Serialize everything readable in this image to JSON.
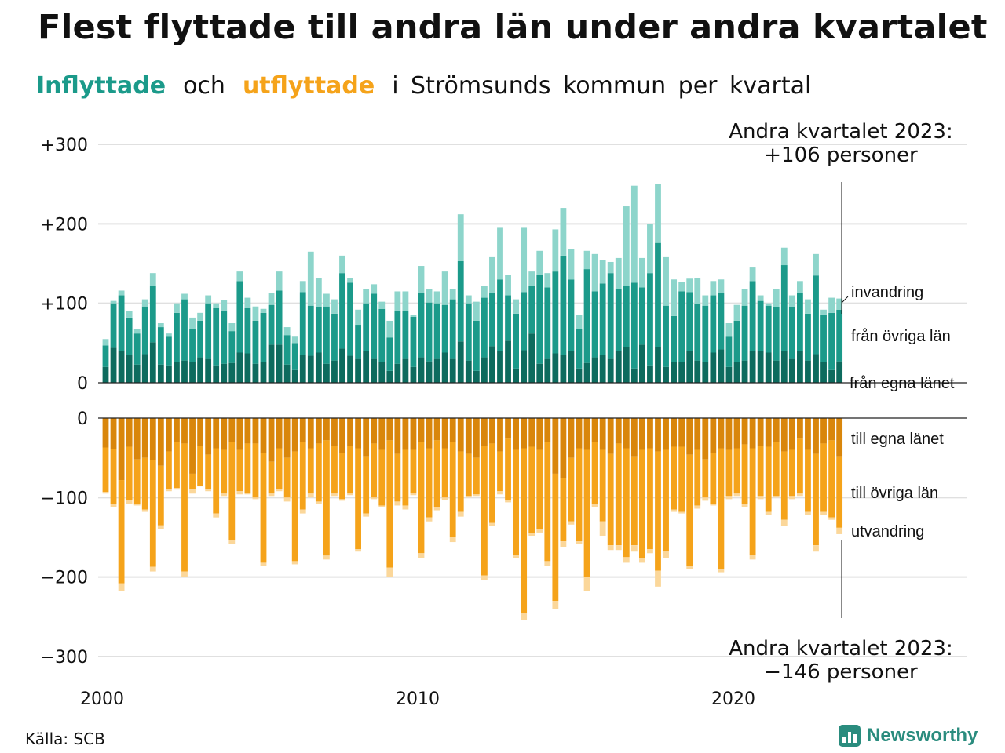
{
  "title": "Flest flyttade till andra län under andra kvartalet",
  "subtitle": {
    "in_label": "Inflyttade",
    "and": "och",
    "out_label": "utflyttade",
    "rest": "i Strömsunds kommun per kvartal"
  },
  "source": "Källa: SCB",
  "brand": "Newsworthy",
  "colors": {
    "in_own": "#0d6b5e",
    "in_other": "#1b9a8a",
    "in_immigration": "#8dd5cb",
    "out_own": "#d9860b",
    "out_other": "#f5a31a",
    "out_emigration": "#fbd79a"
  },
  "chart_data": {
    "type": "bar",
    "stacked": true,
    "x_start_year": 2000,
    "periods_per_year": 4,
    "ylim": [
      -300,
      300
    ],
    "y_ticks_top": [
      "+300",
      "+200",
      "+100",
      "0"
    ],
    "y_ticks_bottom": [
      "0",
      "−100",
      "−200",
      "−300"
    ],
    "x_ticks": [
      "2000",
      "2010",
      "2020"
    ],
    "grid": true,
    "annotation_top_line1": "Andra kvartalet 2023:",
    "annotation_top_line2": "+106 personer",
    "annotation_bottom_line1": "Andra kvartalet 2023:",
    "annotation_bottom_line2": "−146 personer",
    "series_labels": {
      "in_immigration": "invandring",
      "in_other": "från övriga län",
      "in_own": "från egna länet",
      "out_own": "till egna länet",
      "out_other": "till övriga län",
      "out_emigration": "utvandring"
    },
    "in_totals": [
      55,
      103,
      116,
      90,
      68,
      105,
      138,
      75,
      62,
      100,
      112,
      82,
      88,
      110,
      100,
      104,
      75,
      140,
      107,
      96,
      93,
      113,
      140,
      70,
      58,
      128,
      165,
      132,
      112,
      105,
      160,
      132,
      92,
      118,
      124,
      102,
      78,
      115,
      115,
      85,
      147,
      118,
      115,
      140,
      118,
      212,
      110,
      102,
      122,
      158,
      195,
      136,
      105,
      195,
      140,
      166,
      138,
      193,
      220,
      168,
      85,
      166,
      162,
      154,
      152,
      157,
      222,
      248,
      157,
      200,
      250,
      158,
      130,
      127,
      131,
      132,
      110,
      128,
      130,
      75,
      98,
      118,
      145,
      110,
      100,
      118,
      170,
      110,
      128,
      105,
      162,
      92,
      107,
      106
    ],
    "in_own": [
      20,
      44,
      40,
      35,
      23,
      36,
      51,
      23,
      22,
      26,
      28,
      26,
      32,
      30,
      22,
      24,
      25,
      38,
      37,
      24,
      26,
      48,
      48,
      23,
      16,
      35,
      34,
      38,
      24,
      28,
      43,
      34,
      30,
      40,
      30,
      26,
      15,
      24,
      30,
      20,
      32,
      27,
      30,
      38,
      30,
      52,
      28,
      15,
      32,
      46,
      40,
      53,
      18,
      41,
      62,
      24,
      30,
      37,
      35,
      40,
      18,
      25,
      32,
      35,
      30,
      40,
      45,
      18,
      48,
      22,
      45,
      20,
      26,
      26,
      40,
      28,
      26,
      38,
      42,
      20,
      26,
      28,
      40,
      40,
      38,
      28,
      40,
      30,
      40,
      28,
      36,
      26,
      16,
      27
    ],
    "in_other": [
      47,
      100,
      110,
      82,
      62,
      96,
      122,
      70,
      58,
      88,
      105,
      68,
      78,
      100,
      94,
      91,
      65,
      128,
      94,
      78,
      88,
      98,
      116,
      60,
      50,
      114,
      97,
      95,
      96,
      87,
      138,
      126,
      73,
      100,
      112,
      93,
      57,
      90,
      90,
      83,
      113,
      101,
      100,
      98,
      105,
      153,
      100,
      78,
      107,
      113,
      130,
      110,
      87,
      114,
      122,
      136,
      120,
      140,
      160,
      130,
      68,
      143,
      115,
      125,
      138,
      118,
      122,
      126,
      120,
      138,
      176,
      97,
      84,
      115,
      114,
      99,
      97,
      110,
      113,
      58,
      78,
      97,
      128,
      103,
      97,
      95,
      148,
      95,
      113,
      87,
      135,
      86,
      88,
      92
    ],
    "out_own": [
      37,
      39,
      78,
      36,
      52,
      50,
      53,
      60,
      42,
      30,
      32,
      70,
      35,
      46,
      38,
      40,
      30,
      40,
      32,
      32,
      44,
      55,
      38,
      50,
      42,
      30,
      38,
      32,
      28,
      35,
      44,
      35,
      38,
      48,
      32,
      40,
      28,
      45,
      40,
      40,
      30,
      38,
      28,
      38,
      30,
      42,
      45,
      50,
      35,
      32,
      42,
      26,
      40,
      38,
      36,
      40,
      30,
      70,
      76,
      50,
      38,
      40,
      30,
      40,
      45,
      32,
      38,
      48,
      40,
      38,
      42,
      40,
      36,
      36,
      46,
      40,
      52,
      44,
      38,
      40,
      38,
      33,
      38,
      35,
      36,
      30,
      42,
      40,
      26,
      40,
      45,
      32,
      28,
      48
    ],
    "out_other": [
      93,
      108,
      208,
      103,
      108,
      115,
      187,
      135,
      90,
      88,
      193,
      90,
      85,
      90,
      120,
      95,
      153,
      92,
      95,
      100,
      182,
      95,
      90,
      100,
      180,
      115,
      95,
      105,
      173,
      95,
      102,
      95,
      165,
      120,
      100,
      110,
      188,
      105,
      110,
      95,
      170,
      125,
      112,
      100,
      150,
      118,
      98,
      96,
      198,
      132,
      92,
      103,
      172,
      245,
      145,
      140,
      180,
      230,
      155,
      130,
      155,
      200,
      108,
      130,
      160,
      160,
      175,
      160,
      176,
      165,
      192,
      168,
      115,
      118,
      186,
      110,
      100,
      108,
      190,
      98,
      95,
      108,
      172,
      98,
      118,
      98,
      128,
      98,
      95,
      118,
      160,
      118,
      125,
      138
    ],
    "out_totals": [
      95,
      112,
      218,
      108,
      110,
      118,
      193,
      140,
      92,
      90,
      200,
      95,
      86,
      92,
      125,
      98,
      158,
      96,
      96,
      102,
      186,
      98,
      92,
      105,
      184,
      120,
      100,
      108,
      178,
      98,
      104,
      97,
      168,
      124,
      102,
      112,
      200,
      110,
      115,
      97,
      176,
      130,
      116,
      103,
      156,
      124,
      100,
      98,
      204,
      136,
      96,
      106,
      176,
      254,
      148,
      144,
      186,
      240,
      162,
      134,
      158,
      218,
      112,
      148,
      166,
      166,
      182,
      168,
      182,
      170,
      212,
      176,
      118,
      120,
      190,
      114,
      104,
      110,
      194,
      102,
      98,
      112,
      178,
      102,
      122,
      100,
      136,
      102,
      98,
      122,
      168,
      122,
      128,
      146
    ]
  }
}
